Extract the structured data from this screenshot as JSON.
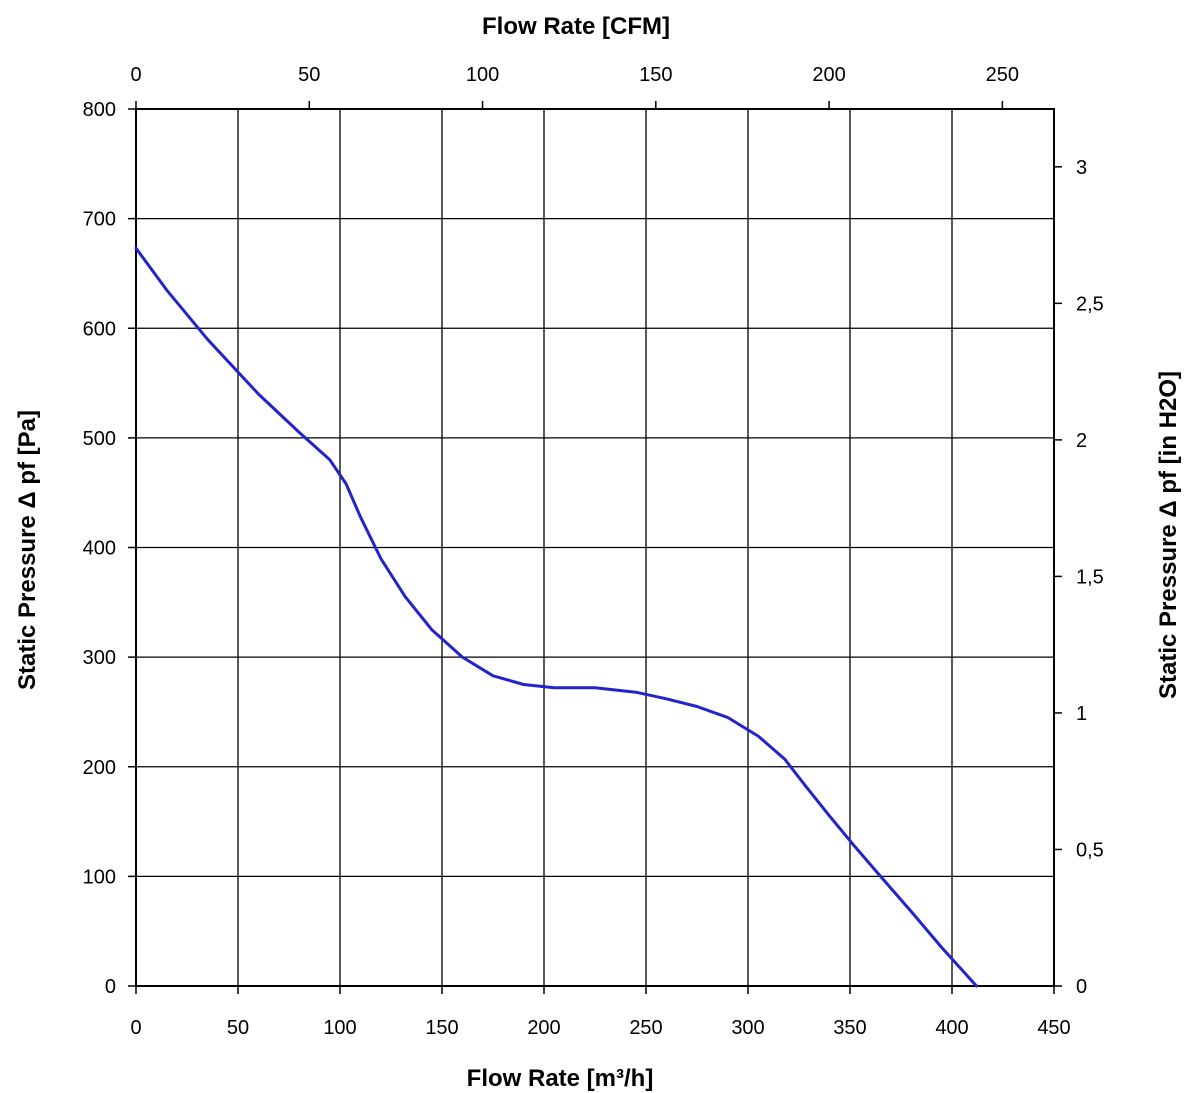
{
  "chart_data": {
    "type": "line",
    "x_axis_bottom": {
      "label": "Flow Rate [m³/h]",
      "range": [
        0,
        450
      ],
      "ticks": [
        0,
        50,
        100,
        150,
        200,
        250,
        300,
        350,
        400,
        450
      ],
      "tick_labels": [
        "0",
        "50",
        "100",
        "150",
        "200",
        "250",
        "300",
        "350",
        "400",
        "450"
      ]
    },
    "x_axis_top": {
      "label": "Flow Rate [CFM]",
      "range": [
        0,
        264.9
      ],
      "ticks": [
        0,
        50,
        100,
        150,
        200,
        250
      ],
      "tick_labels": [
        "0",
        "50",
        "100",
        "150",
        "200",
        "250"
      ]
    },
    "y_axis_left": {
      "label": "Static Pressure Δ pf [Pa]",
      "range": [
        0,
        800
      ],
      "ticks": [
        0,
        100,
        200,
        300,
        400,
        500,
        600,
        700,
        800
      ],
      "tick_labels": [
        "0",
        "100",
        "200",
        "300",
        "400",
        "500",
        "600",
        "700",
        "800"
      ]
    },
    "y_axis_right": {
      "label": "Static Pressure Δ pf [in H2O]",
      "range": [
        0,
        3.2117
      ],
      "ticks": [
        0,
        0.5,
        1,
        1.5,
        2,
        2.5,
        3
      ],
      "tick_labels": [
        "0",
        "0,5",
        "1",
        "1,5",
        "2",
        "2,5",
        "3"
      ]
    },
    "grid": true,
    "series": [
      {
        "color": "#2323cc",
        "x": [
          0,
          15,
          35,
          60,
          80,
          95,
          103,
          110,
          120,
          132,
          145,
          160,
          175,
          190,
          205,
          225,
          245,
          260,
          275,
          290,
          305,
          318,
          328,
          340,
          352,
          365,
          380,
          395,
          412
        ],
        "y": [
          673,
          635,
          590,
          540,
          505,
          480,
          458,
          428,
          390,
          355,
          325,
          300,
          283,
          275,
          272,
          272,
          268,
          262,
          255,
          245,
          228,
          207,
          183,
          155,
          128,
          100,
          68,
          35,
          0
        ]
      }
    ]
  }
}
